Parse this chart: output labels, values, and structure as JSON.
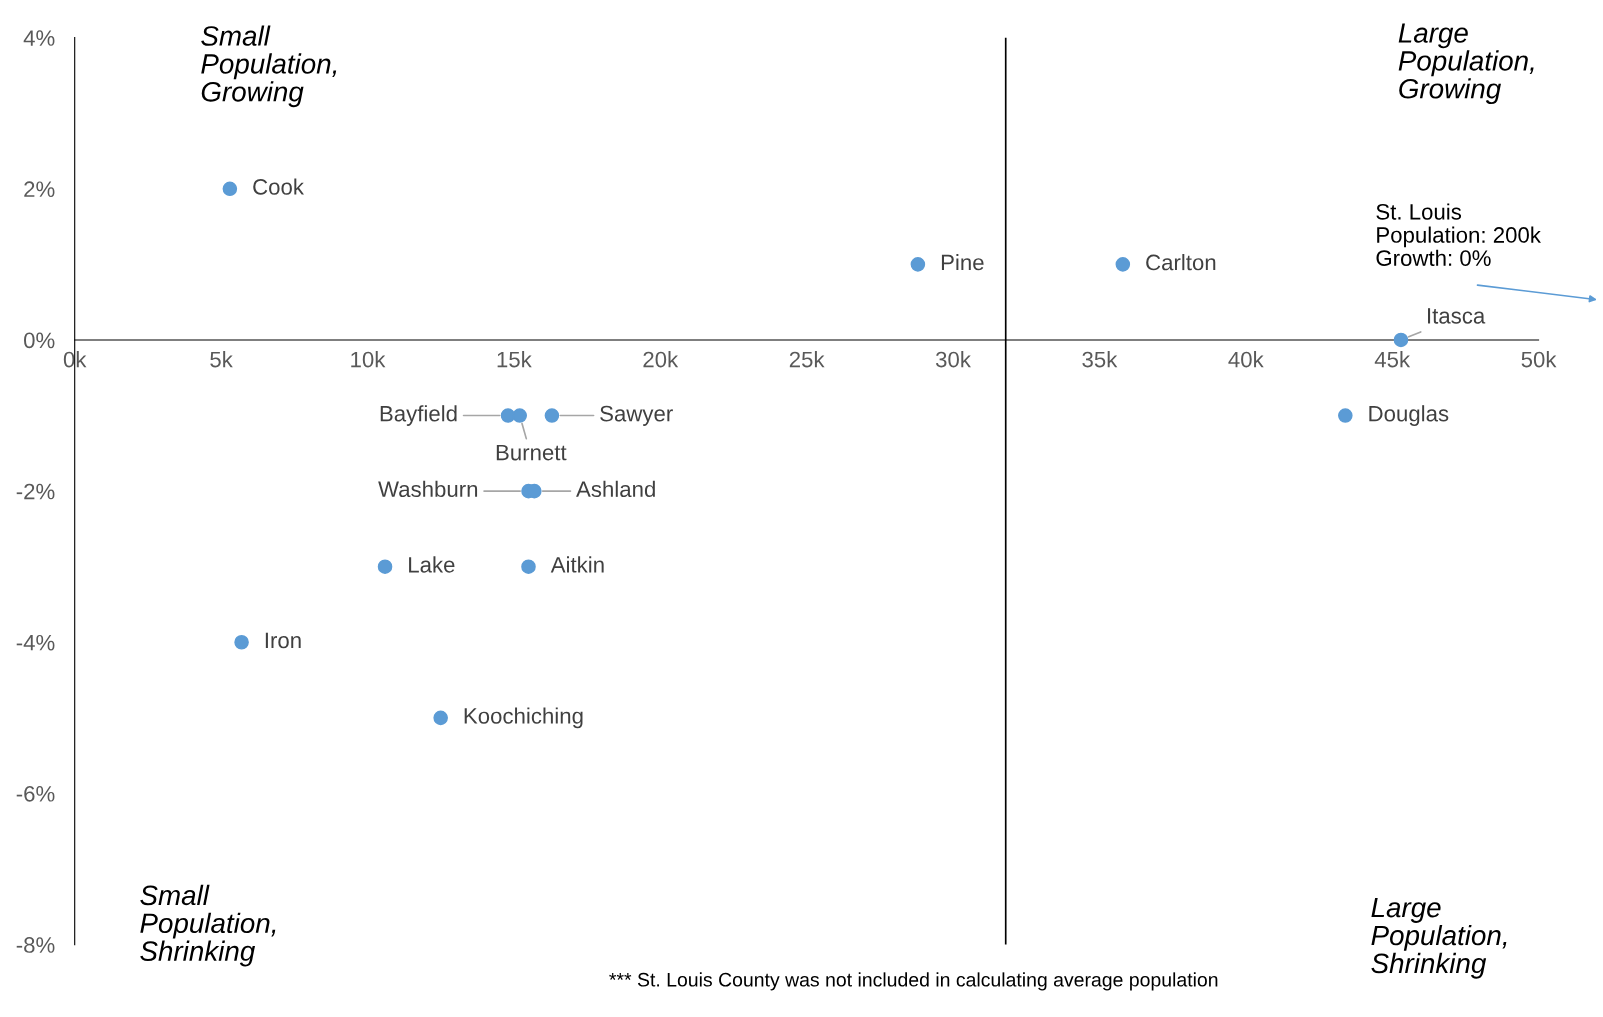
{
  "chart_data": {
    "type": "scatter",
    "series": [
      {
        "color": "#5b9bd5",
        "x": [
          5.3,
          28.8,
          35.8,
          45.3,
          43.4,
          14.8,
          15.2,
          16.3,
          15.5,
          15.7,
          10.6,
          15.5,
          5.7,
          12.5
        ],
        "values": [
          2,
          1,
          1,
          0,
          -1,
          -1,
          -1,
          -1,
          -2,
          -2,
          -3,
          -3,
          -4,
          -5
        ]
      }
    ],
    "marker": "circle",
    "xlim": [
      0,
      50
    ],
    "xticks": [
      {
        "value": 0,
        "label": "0k"
      },
      {
        "value": 5,
        "label": "5k"
      },
      {
        "value": 10,
        "label": "10k"
      },
      {
        "value": 15,
        "label": "15k"
      },
      {
        "value": 20,
        "label": "20k"
      },
      {
        "value": 25,
        "label": "25k"
      },
      {
        "value": 30,
        "label": "30k"
      },
      {
        "value": 35,
        "label": "35k"
      },
      {
        "value": 40,
        "label": "40k"
      },
      {
        "value": 45,
        "label": "45k"
      },
      {
        "value": 50,
        "label": "50k"
      }
    ],
    "ylim": [
      -8,
      4
    ],
    "yticks": [
      {
        "value": -8,
        "label": "-8%"
      },
      {
        "value": -6,
        "label": "-6%"
      },
      {
        "value": -4,
        "label": "-4%"
      },
      {
        "value": -2,
        "label": "-2%"
      },
      {
        "value": 0,
        "label": "0%"
      },
      {
        "value": 2,
        "label": "2%"
      },
      {
        "value": 4,
        "label": "4%"
      }
    ],
    "grid": false,
    "legend": false,
    "ref_lines": [
      {
        "axis": "x",
        "value": 31.8,
        "color": "#000000"
      }
    ],
    "annotations": [
      {
        "text": "Cook",
        "x": 5.3,
        "y": 2
      },
      {
        "text": "Pine",
        "x": 28.8,
        "y": 1
      },
      {
        "text": "Carlton",
        "x": 35.8,
        "y": 1
      },
      {
        "text": "Itasca",
        "x": 45.3,
        "y": 0
      },
      {
        "text": "Douglas",
        "x": 43.4,
        "y": -1
      },
      {
        "text": "Bayfield",
        "x": 14.8,
        "y": -1
      },
      {
        "text": "Burnett",
        "x": 15.2,
        "y": -1
      },
      {
        "text": "Sawyer",
        "x": 16.3,
        "y": -1
      },
      {
        "text": "Washburn",
        "x": 15.5,
        "y": -2
      },
      {
        "text": "Ashland",
        "x": 15.7,
        "y": -2
      },
      {
        "text": "Lake",
        "x": 10.6,
        "y": -3
      },
      {
        "text": "Aitkin",
        "x": 15.5,
        "y": -3
      },
      {
        "text": "Iron",
        "x": 5.7,
        "y": -4
      },
      {
        "text": "Koochiching",
        "x": 12.5,
        "y": -5
      },
      "Small\nPopulation,\nGrowing",
      "Large\nPopulation,\nGrowing",
      "Small\nPopulation,\nShrinking",
      "Large\nPopulation,\nShrinking",
      "St. Louis\nPopulation: 200k\nGrowth: 0%",
      "*** St. Louis County was not included in calculating average population"
    ]
  }
}
